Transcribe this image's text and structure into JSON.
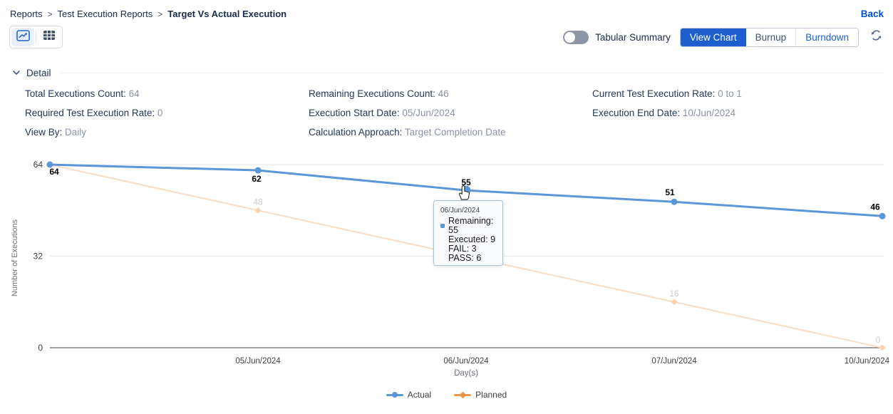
{
  "breadcrumb": {
    "items": [
      "Reports",
      "Test Execution Reports",
      "Target Vs Actual Execution"
    ],
    "separator": ">",
    "back_label": "Back"
  },
  "toolbar": {
    "tabular_summary_label": "Tabular Summary",
    "tabular_summary_state": "off",
    "view_chart_label": "View Chart",
    "burnup_label": "Burnup",
    "burndown_label": "Burndown",
    "selected_view": "View Chart"
  },
  "detail": {
    "title": "Detail",
    "fields": [
      {
        "label": "Total Executions Count:",
        "value": "64"
      },
      {
        "label": "Remaining Executions Count:",
        "value": "46"
      },
      {
        "label": "Current Test Execution Rate:",
        "value": "0 to 1"
      },
      {
        "label": "Required Test Execution Rate:",
        "value": "0"
      },
      {
        "label": "Execution Start Date:",
        "value": "05/Jun/2024"
      },
      {
        "label": "Execution End Date:",
        "value": "10/Jun/2024"
      },
      {
        "label": "View By:",
        "value": "Daily"
      },
      {
        "label": "Calculation Approach:",
        "value": "Target Completion Date"
      }
    ]
  },
  "chart_data": {
    "type": "line",
    "xlabel": "Day(s)",
    "ylabel": "Number of Executions",
    "x_tick_labels": [
      "",
      "05/Jun/2024",
      "06/Jun/2024",
      "07/Jun/2024",
      "10/Jun/2024"
    ],
    "y_ticks": [
      64,
      32,
      0
    ],
    "ylim": [
      0,
      64
    ],
    "grid": true,
    "legend_position": "bottom",
    "series": [
      {
        "name": "Actual",
        "values": [
          64,
          62,
          55,
          51,
          46
        ],
        "color": "#5b96d8",
        "marker": "circle",
        "label_color": "#000000",
        "legend_color": "#5b96d8",
        "labels_visible": [
          true,
          true,
          true,
          true,
          true
        ]
      },
      {
        "name": "Planned",
        "values": [
          64,
          48,
          32,
          16,
          0
        ],
        "color": "#fadcc3",
        "marker": "diamond",
        "marker_color": "#f8d2b2",
        "label_color": "#cccccc",
        "legend_color": "#ee964b",
        "labels_visible": [
          false,
          true,
          true,
          true,
          true
        ]
      }
    ],
    "hover": {
      "series": "Actual",
      "index": 2,
      "value": 55
    },
    "tooltip": {
      "date": "06/Jun/2024",
      "bullet_color": "#5b96d8",
      "items": [
        {
          "text": "Remaining: 55",
          "bullet": true
        },
        {
          "text": "Executed: 9",
          "bullet": false
        },
        {
          "text": "FAIL: 3",
          "bullet": false
        },
        {
          "text": "PASS: 6",
          "bullet": false
        }
      ]
    }
  },
  "colors": {
    "primary_blue": "#1d5fce",
    "back_link": "#0052cc",
    "actual_series": "#5b96d8",
    "planned_series": "#ee964b"
  }
}
